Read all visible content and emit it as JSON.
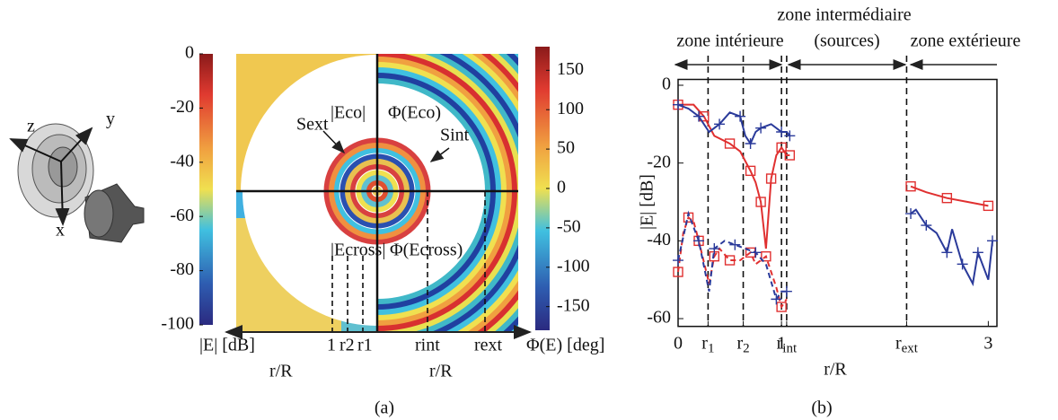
{
  "panel_a": {
    "label": "(a)",
    "axes_3d": [
      "z",
      "y",
      "x"
    ],
    "colorbar_left": {
      "title": "|E| [dB]",
      "range": [
        -100,
        0
      ],
      "ticks": [
        0,
        -20,
        -40,
        -60,
        -80,
        -100
      ]
    },
    "colorbar_right": {
      "title": "Φ(E) [deg]",
      "range": [
        -180,
        180
      ],
      "ticks": [
        150,
        100,
        50,
        0,
        -50,
        -100,
        -150
      ]
    },
    "quadrant_labels": [
      "|Eco|",
      "Φ(Eco)",
      "|Ecross|",
      "Φ(Ecross)"
    ],
    "surface_labels": [
      "Sext",
      "Sint"
    ],
    "axis_marks": [
      "1",
      "r2",
      "r1",
      "rint",
      "rext"
    ],
    "axis_titles": [
      "r/R",
      "r/R"
    ]
  },
  "chart_data": {
    "type": "line",
    "panel_label": "(b)",
    "x_label": "r/R",
    "y_label": "|E| [dB]",
    "zones": {
      "intermediate": "zone intermédiaire",
      "interior": "zone intérieure",
      "sources": "(sources)",
      "exterior": "zone extérieure"
    },
    "xlim": [
      0,
      3.04
    ],
    "ylim": [
      -62,
      1.5
    ],
    "xticks": [
      0,
      {
        "value": 0.29,
        "label": "r1"
      },
      {
        "value": 0.63,
        "label": "r2"
      },
      1,
      {
        "value": 1.05,
        "label": "rint"
      },
      {
        "value": 2.21,
        "label": "rext"
      },
      3
    ],
    "yticks": [
      0,
      -20,
      -40,
      -60
    ],
    "series": [
      {
        "color": "#e03030",
        "dash": false,
        "marker": "square",
        "x": [
          0,
          0.15,
          0.25,
          0.35,
          0.5,
          0.6,
          0.7,
          0.75,
          0.8,
          0.85,
          0.9,
          0.95,
          1.0,
          1.05,
          1.08,
          null,
          2.25,
          2.4,
          2.6,
          2.8,
          3.0
        ],
        "values": [
          -5,
          -5,
          -8,
          -13,
          -15,
          -17,
          -22,
          -25,
          -30,
          -42,
          -24,
          -18,
          -16,
          -18,
          -18,
          null,
          -26,
          -27.5,
          -29,
          -30,
          -31
        ]
      },
      {
        "color": "#2a3a9a",
        "dash": false,
        "marker": "plus",
        "x": [
          0,
          0.1,
          0.2,
          0.3,
          0.4,
          0.5,
          0.6,
          0.65,
          0.7,
          0.75,
          0.8,
          0.9,
          1.0,
          1.05,
          1.08,
          null,
          2.25,
          2.3,
          2.4,
          2.5,
          2.6,
          2.65,
          2.75,
          2.85,
          2.9,
          3.0,
          3.04
        ],
        "values": [
          -5,
          -6,
          -8,
          -12,
          -10,
          -7,
          -8,
          -13,
          -15,
          -12,
          -11,
          -10,
          -12,
          -12,
          -13,
          null,
          -33,
          -32,
          -36,
          -38,
          -43,
          -37,
          -46,
          -51,
          -43,
          -50,
          -40
        ]
      },
      {
        "color": "#e03030",
        "dash": true,
        "marker": "square",
        "x": [
          0,
          0.05,
          0.1,
          0.15,
          0.2,
          0.3,
          0.35,
          0.4,
          0.5,
          0.6,
          0.7,
          0.75,
          0.85,
          0.95,
          1.0,
          1.05
        ],
        "values": [
          -48,
          -38,
          -34,
          -35,
          -40,
          -51,
          -44,
          -42,
          -45,
          -45,
          -43,
          -46,
          -44,
          -52,
          -57,
          -55
        ]
      },
      {
        "color": "#2a3a9a",
        "dash": true,
        "marker": "plus",
        "x": [
          0,
          0.1,
          0.2,
          0.3,
          0.35,
          0.45,
          0.55,
          0.65,
          0.75,
          0.85,
          0.95,
          1.0,
          1.05
        ],
        "values": [
          -45,
          -33,
          -40,
          -53,
          -42,
          -40,
          -41,
          -42,
          -43,
          -46,
          -55,
          -53,
          -53
        ]
      }
    ]
  }
}
